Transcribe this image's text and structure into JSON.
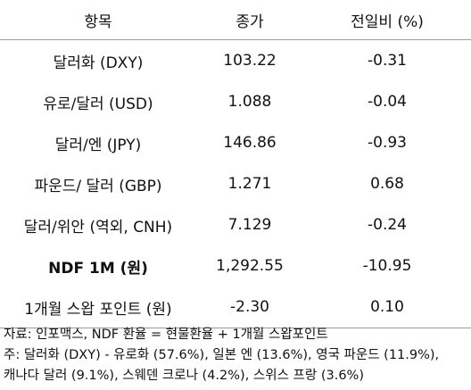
{
  "table": {
    "headers": [
      "항목",
      "종가",
      "전일비 (%)"
    ],
    "rows": [
      {
        "label": "달러화 (DXY)",
        "close": "103.22",
        "change": "-0.31",
        "bold": false
      },
      {
        "label": "유로/달러 (USD)",
        "close": "1.088",
        "change": "-0.04",
        "bold": false
      },
      {
        "label": "달러/엔 (JPY)",
        "close": "146.86",
        "change": "-0.93",
        "bold": false
      },
      {
        "label": "파운드/ 달러 (GBP)",
        "close": "1.271",
        "change": "0.68",
        "bold": false
      },
      {
        "label": "달러/위안 (역외, CNH)",
        "close": "7.129",
        "change": "-0.24",
        "bold": false
      },
      {
        "label": "NDF 1M (원)",
        "close": "1,292.55",
        "change": "-10.95",
        "bold": true
      },
      {
        "label": "1개월 스왑 포인트 (원)",
        "close": "-2.30",
        "change": "0.10",
        "bold": false
      }
    ]
  },
  "notes": {
    "source": "자료: 인포맥스, NDF 환율 = 현물환율 + 1개월 스왑포인트",
    "note_line1": "주: 달러화 (DXY) - 유로화 (57.6%), 일본 엔 (13.6%), 영국 파운드 (11.9%),",
    "note_line2": "캐나다 달러 (9.1%), 스웨덴 크로나 (4.2%), 스위스 프랑 (3.6%)"
  }
}
